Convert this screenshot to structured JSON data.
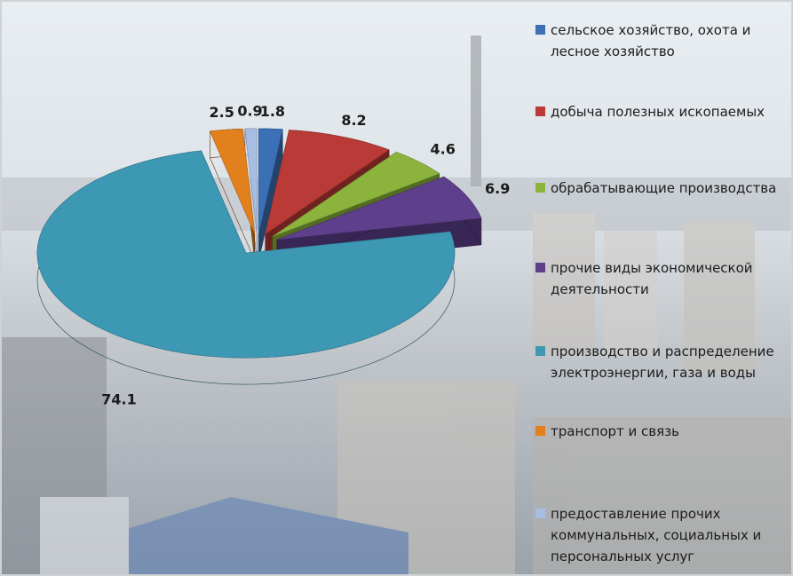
{
  "chart_data": {
    "type": "pie",
    "categories": [
      "сельское хозяйство, охота и лесное хозяйство",
      "добыча полезных ископаемых",
      "обрабатывающие производства",
      "прочие виды экономической деятельности",
      "производство и распределение электроэнергии, газа и воды",
      "транспорт и связь",
      "предоставление прочих коммунальных, социальных и персональных услуг"
    ],
    "values": [
      1.8,
      8.2,
      4.6,
      6.9,
      74.1,
      2.5,
      0.9
    ],
    "colors": [
      "#3b6fb6",
      "#b93a36",
      "#8cb43c",
      "#5e3f8c",
      "#3d98b4",
      "#e2801e",
      "#a7bde2"
    ],
    "legend": "right"
  }
}
